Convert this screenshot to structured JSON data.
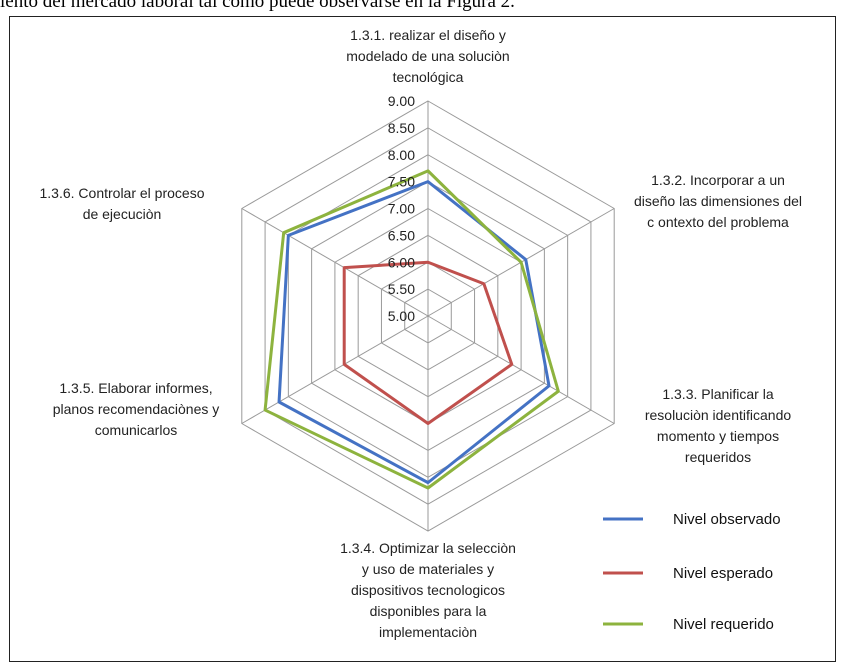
{
  "caption": "iento del mercado laboral tal como puede observarse en la Figura 2.",
  "chart_data": {
    "type": "radar",
    "title": "",
    "categories": [
      [
        "1.3.1. realizar el diseño y",
        "modelado de una soluciòn",
        "tecnológica"
      ],
      [
        "1.3.2. Incorporar a un",
        "diseño las dimensiones del",
        "c ontexto  del problema"
      ],
      [
        "1.3.3. Planificar la",
        "resoluciòn identificando",
        "momento y tiempos",
        "requeridos"
      ],
      [
        "1.3.4. Optimizar la selecciòn",
        "y uso de materiales y",
        "dispositivos tecnologicos",
        "disponibles para la",
        "implementaciòn"
      ],
      [
        "1.3.5. Elaborar informes,",
        "planos recomendaciònes y",
        "comunicarlos"
      ],
      [
        "1.3.6. Controlar el proceso",
        "de ejecuciòn"
      ]
    ],
    "rlim": [
      5.0,
      9.0
    ],
    "ticks": [
      "5.00",
      "5.50",
      "6.00",
      "6.50",
      "7.00",
      "7.50",
      "8.00",
      "8.50",
      "9.00"
    ],
    "series": [
      {
        "name": "Nivel observado",
        "color": "#4472C4",
        "values": [
          7.5,
          7.1,
          7.6,
          8.1,
          8.2,
          8.0
        ]
      },
      {
        "name": "Nivel esperado",
        "color": "#C0504D",
        "values": [
          6.0,
          6.2,
          6.8,
          7.0,
          6.8,
          6.8
        ]
      },
      {
        "name": "Nivel requerido",
        "color": "#8DB33E",
        "values": [
          7.7,
          7.0,
          7.8,
          8.2,
          8.5,
          8.1
        ]
      }
    ],
    "grid": true,
    "legend": "bottom-right"
  }
}
